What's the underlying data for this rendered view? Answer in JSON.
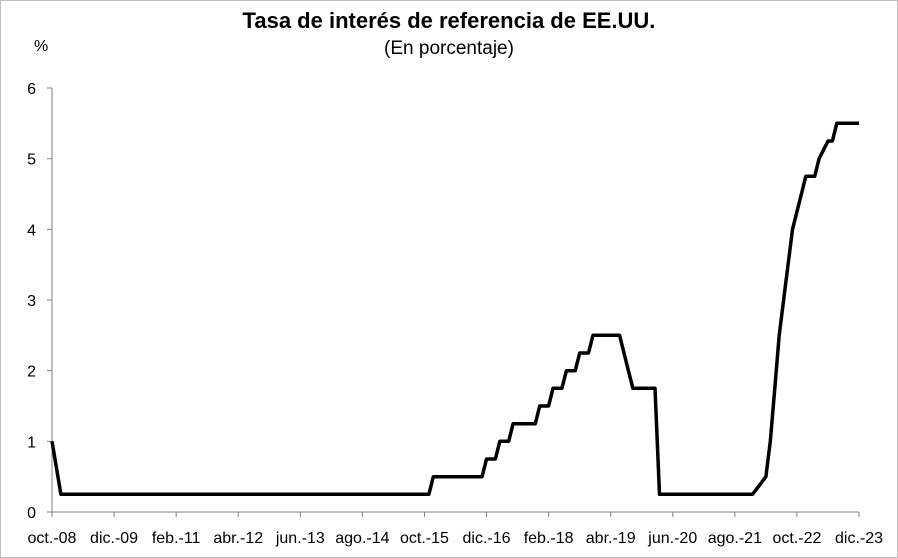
{
  "chart_data": {
    "type": "line",
    "title": "Tasa de interés de referencia de EE.UU.",
    "subtitle": "(En porcentaje)",
    "ylabel": "%",
    "ylim": [
      0,
      6
    ],
    "yticks": [
      0,
      1,
      2,
      3,
      4,
      5,
      6
    ],
    "x_tick_labels": [
      "oct.-08",
      "dic.-09",
      "feb.-11",
      "abr.-12",
      "jun.-13",
      "ago.-14",
      "oct.-15",
      "dic.-16",
      "feb.-18",
      "abr.-19",
      "jun.-20",
      "ago.-21",
      "oct.-22",
      "dic.-23"
    ],
    "grid": false,
    "legend": "none",
    "line_color": "#000000",
    "series": [
      {
        "x": [
          "2008-10",
          "2008-12",
          "2015-11",
          "2015-12",
          "2016-11",
          "2016-12",
          "2017-02",
          "2017-03",
          "2017-05",
          "2017-06",
          "2017-11",
          "2017-12",
          "2018-02",
          "2018-03",
          "2018-05",
          "2018-06",
          "2018-08",
          "2018-09",
          "2018-11",
          "2018-12",
          "2019-06",
          "2019-07",
          "2019-08",
          "2019-09",
          "2019-10",
          "2020-02",
          "2020-03",
          "2021-12",
          "2022-03",
          "2022-04",
          "2022-05",
          "2022-06",
          "2022-07",
          "2022-09",
          "2022-11",
          "2022-12",
          "2023-02",
          "2023-03",
          "2023-05",
          "2023-06",
          "2023-07",
          "2023-12"
        ],
        "values": [
          1.0,
          0.25,
          0.25,
          0.5,
          0.5,
          0.75,
          0.75,
          1.0,
          1.0,
          1.25,
          1.25,
          1.5,
          1.5,
          1.75,
          1.75,
          2.0,
          2.0,
          2.25,
          2.25,
          2.5,
          2.5,
          2.25,
          2.0,
          1.75,
          1.75,
          1.75,
          0.25,
          0.25,
          0.5,
          1.0,
          1.75,
          2.5,
          3.0,
          4.0,
          4.5,
          4.75,
          4.75,
          5.0,
          5.25,
          5.25,
          5.5,
          5.5
        ]
      }
    ]
  }
}
